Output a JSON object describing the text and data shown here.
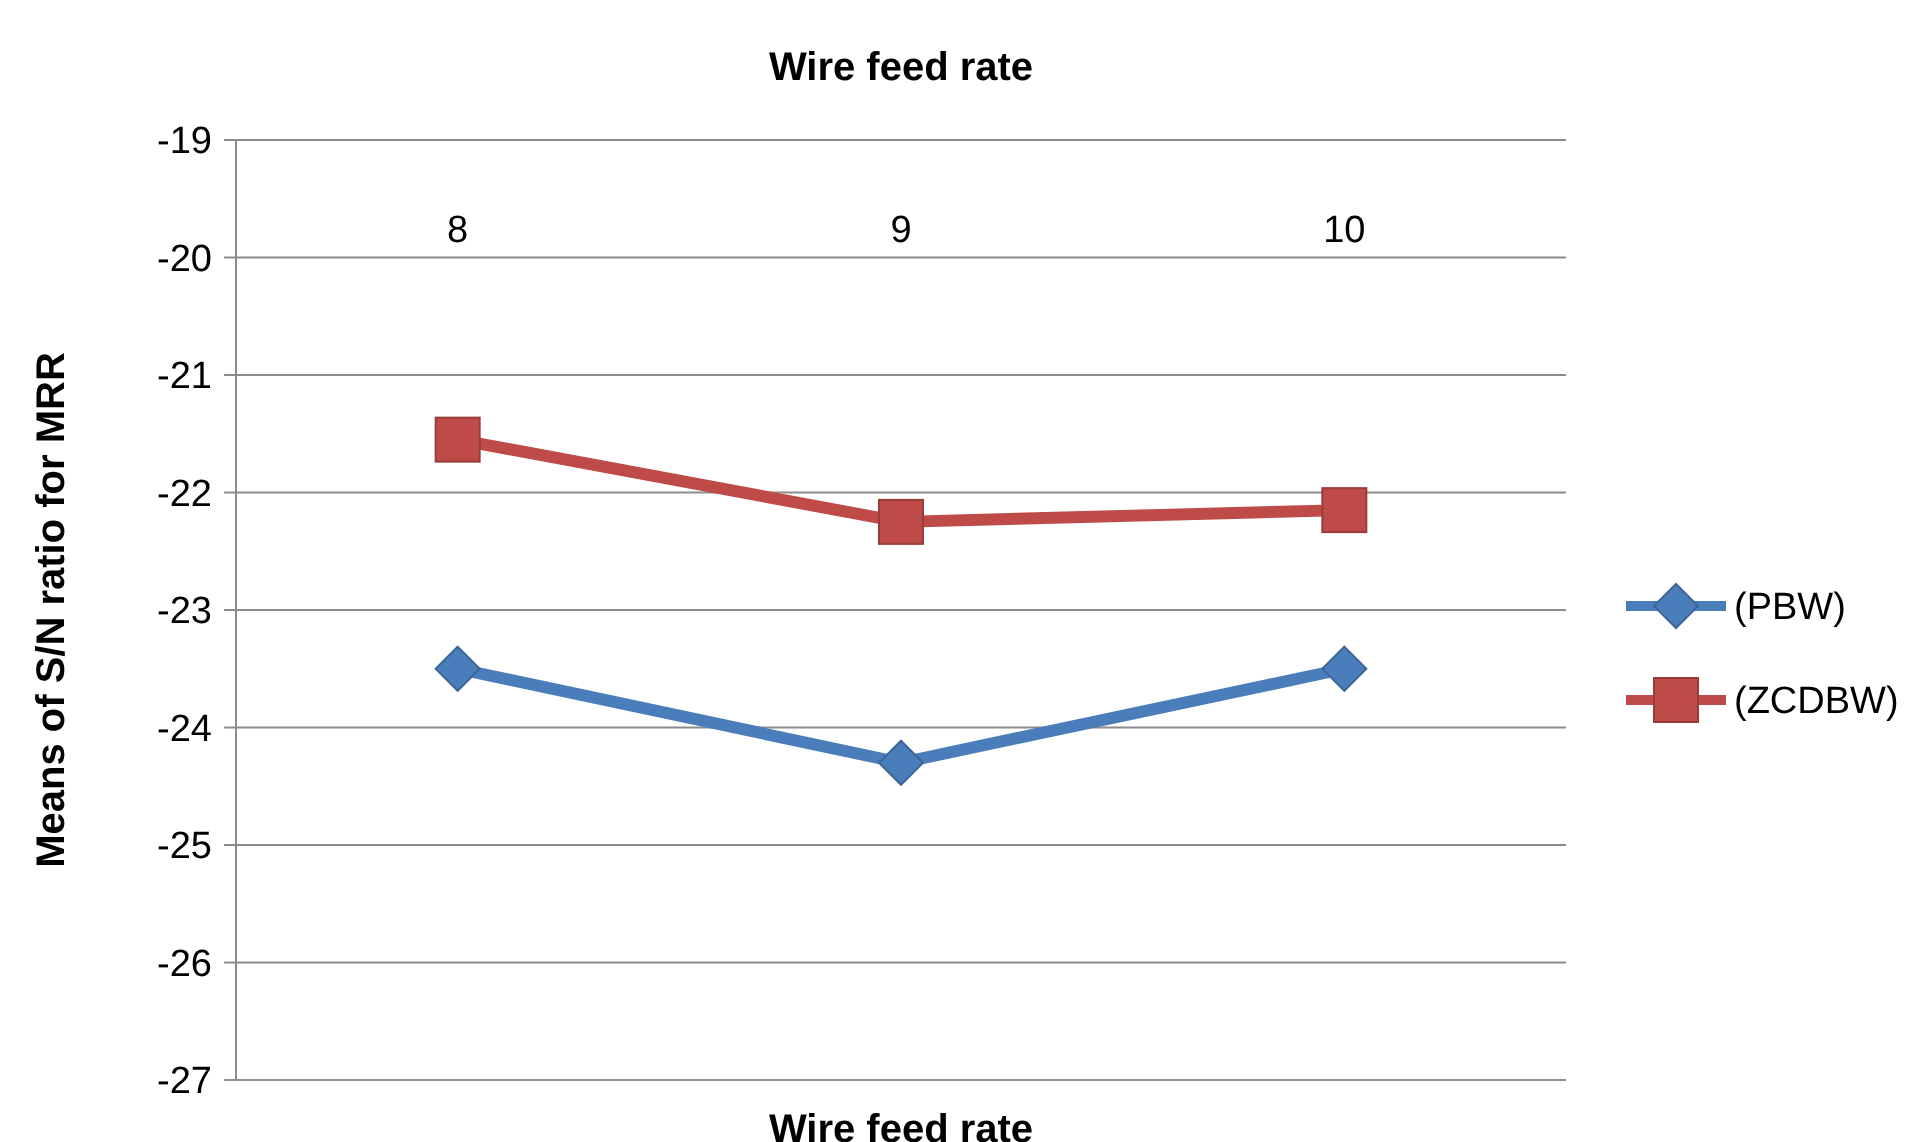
{
  "chart_data": {
    "type": "line",
    "title": "Wire feed rate",
    "xlabel": "Wire feed rate",
    "ylabel": "Means of S/N ratio for MRR",
    "categories": [
      "8",
      "9",
      "10"
    ],
    "series": [
      {
        "name": "(PBW)",
        "color": "#4a7ebb",
        "marker": "diamond",
        "values": [
          -23.5,
          -24.3,
          -23.5
        ]
      },
      {
        "name": "(ZCDBW)",
        "color": "#be4b48",
        "marker": "square",
        "values": [
          -21.55,
          -22.25,
          -22.15
        ]
      }
    ],
    "ylim": [
      -27,
      -19
    ],
    "yticks": [
      -27,
      -26,
      -25,
      -24,
      -23,
      -22,
      -21,
      -20,
      -19
    ],
    "grid": "y",
    "legend": "right"
  }
}
